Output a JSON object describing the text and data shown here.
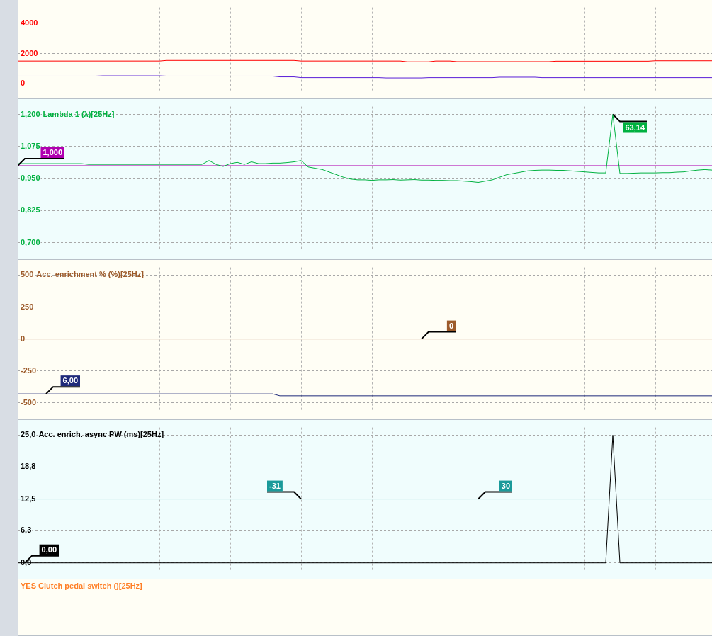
{
  "chart_data": [
    {
      "type": "line",
      "categories": [
        null,
        null,
        null,
        null,
        null,
        null,
        null,
        null,
        null,
        null,
        null,
        null,
        null,
        null,
        null,
        null,
        null,
        null,
        null,
        null,
        null,
        null,
        null,
        null,
        null,
        null,
        null,
        null,
        null,
        null,
        null,
        null,
        null,
        null,
        null,
        null,
        null,
        null,
        null,
        null,
        null,
        null,
        null,
        null,
        null,
        null,
        null,
        null,
        null,
        null,
        null,
        null,
        null,
        null,
        null,
        null,
        null,
        null,
        null,
        null,
        null,
        null,
        null,
        null,
        null,
        null,
        null,
        null,
        null,
        null,
        null,
        null,
        null,
        null,
        null,
        null,
        null,
        null,
        null,
        null,
        null,
        null,
        null,
        null,
        null,
        null,
        null,
        null,
        null,
        null,
        null,
        null,
        null,
        null,
        null,
        null,
        null,
        null,
        null
      ],
      "ylim": [
        -480,
        5040
      ],
      "yticks": [
        0,
        2000,
        4000
      ],
      "grid": true,
      "tick_labels": "y",
      "marker": "none",
      "series": [
        {
          "color": "#ff0000",
          "values": [
            1500,
            1500,
            1500,
            1500,
            1500,
            1500,
            1500,
            1500,
            1500,
            1500,
            1500,
            1500,
            1500,
            1500,
            1500,
            1500,
            1500,
            1500,
            1500,
            1500,
            1500,
            1540,
            1540,
            1540,
            1540,
            1540,
            1540,
            1540,
            1540,
            1540,
            1540,
            1540,
            1540,
            1540,
            1540,
            1540,
            1540,
            1540,
            1540,
            1540,
            1500,
            1500,
            1500,
            1500,
            1500,
            1500,
            1500,
            1500,
            1500,
            1500,
            1500,
            1500,
            1500,
            1500,
            1500,
            1450,
            1450,
            1450,
            1450,
            1500,
            1500,
            1500,
            1460,
            1460,
            1460,
            1460,
            1460,
            1460,
            1460,
            1460,
            1460,
            1460,
            1460,
            1460,
            1460,
            1460,
            1490,
            1490,
            1490,
            1490,
            1490,
            1490,
            1490,
            1490,
            1490,
            1490,
            1490,
            1490,
            1490,
            1490,
            1520,
            1520,
            1520,
            1520,
            1520,
            1520,
            1520,
            1520,
            1520
          ]
        },
        {
          "color": "#5a1fd8",
          "values": [
            500,
            500,
            500,
            500,
            500,
            500,
            500,
            500,
            500,
            500,
            500,
            500,
            520,
            520,
            520,
            520,
            520,
            520,
            520,
            520,
            520,
            500,
            500,
            500,
            500,
            500,
            500,
            500,
            500,
            500,
            500,
            500,
            500,
            500,
            500,
            500,
            500,
            450,
            450,
            450,
            400,
            400,
            400,
            400,
            400,
            400,
            400,
            400,
            400,
            400,
            400,
            400,
            380,
            380,
            380,
            380,
            380,
            380,
            400,
            400,
            400,
            400,
            400,
            400,
            400,
            400,
            400,
            400,
            430,
            430,
            430,
            430,
            430,
            430,
            400,
            400,
            400,
            400,
            400,
            400,
            400,
            400,
            400,
            400,
            400,
            400,
            400,
            400,
            400,
            400,
            400,
            400,
            400,
            400,
            400,
            400,
            400,
            400,
            400
          ]
        }
      ]
    },
    {
      "type": "line",
      "title": "Lambda 1 (λ)[25Hz]",
      "categories": [
        null,
        null,
        null,
        null,
        null,
        null,
        null,
        null,
        null,
        null,
        null,
        null,
        null,
        null,
        null,
        null,
        null,
        null,
        null,
        null,
        null,
        null,
        null,
        null,
        null,
        null,
        null,
        null,
        null,
        null,
        null,
        null,
        null,
        null,
        null,
        null,
        null,
        null,
        null,
        null,
        null,
        null,
        null,
        null,
        null,
        null,
        null,
        null,
        null,
        null,
        null,
        null,
        null,
        null,
        null,
        null,
        null,
        null,
        null,
        null,
        null,
        null,
        null,
        null,
        null,
        null,
        null,
        null,
        null,
        null,
        null,
        null,
        null,
        null,
        null,
        null,
        null,
        null,
        null,
        null,
        null,
        null,
        null,
        null,
        null,
        null,
        null,
        null,
        null,
        null,
        null,
        null,
        null,
        null,
        null,
        null,
        null,
        null,
        null
      ],
      "ylim": [
        0.665,
        1.23
      ],
      "yticks": [
        {
          "value": 0.7,
          "label": "0,700"
        },
        {
          "value": 0.825,
          "label": "0,825"
        },
        {
          "value": 0.95,
          "label": "0,950"
        },
        {
          "value": 1.075,
          "label": "1,075"
        },
        {
          "value": 1.2,
          "label": "1,200"
        }
      ],
      "grid": true,
      "tick_labels": "y",
      "marker": "none",
      "series": [
        {
          "color": "#00b140",
          "values": [
            1.008,
            1.008,
            1.008,
            1.008,
            1.008,
            1.008,
            1.008,
            1.008,
            1.008,
            1.008,
            1.005,
            1.005,
            1.005,
            1.005,
            1.005,
            1.005,
            1.005,
            1.005,
            1.005,
            1.005,
            1.005,
            1.005,
            1.005,
            1.005,
            1.005,
            1.005,
            1.005,
            1.02,
            1.005,
            0.997,
            1.008,
            1.013,
            1.005,
            1.015,
            1.008,
            1.008,
            1.01,
            1.01,
            1.012,
            1.015,
            1.02,
            0.995,
            0.99,
            0.985,
            0.975,
            0.965,
            0.955,
            0.948,
            0.945,
            0.945,
            0.943,
            0.945,
            0.945,
            0.946,
            0.944,
            0.945,
            0.946,
            0.944,
            0.944,
            0.943,
            0.943,
            0.942,
            0.942,
            0.94,
            0.938,
            0.935,
            0.94,
            0.945,
            0.955,
            0.965,
            0.97,
            0.975,
            0.98,
            0.982,
            0.983,
            0.983,
            0.982,
            0.982,
            0.98,
            0.978,
            0.976,
            0.974,
            0.972,
            0.972,
            1.2,
            0.97,
            0.97,
            0.971,
            0.972,
            0.972,
            0.972,
            0.973,
            0.973,
            0.975,
            0.976,
            0.98,
            0.983,
            0.985,
            0.983
          ]
        },
        {
          "color": "#b000b0",
          "values": [
            1.0,
            1.0,
            1.0,
            1.0,
            1.0,
            1.0,
            1.0,
            1.0,
            1.0,
            1.0,
            1.0,
            1.0,
            1.0,
            1.0,
            1.0,
            1.0,
            1.0,
            1.0,
            1.0,
            1.0,
            1.0,
            1.0,
            1.0,
            1.0,
            1.0,
            1.0,
            1.0,
            1.0,
            1.0,
            1.0,
            1.0,
            1.0,
            1.0,
            1.0,
            1.0,
            1.0,
            1.0,
            1.0,
            1.0,
            1.0,
            1.0,
            1.0,
            1.0,
            1.0,
            1.0,
            1.0,
            1.0,
            1.0,
            1.0,
            1.0,
            1.0,
            1.0,
            1.0,
            1.0,
            1.0,
            1.0,
            1.0,
            1.0,
            1.0,
            1.0,
            1.0,
            1.0,
            1.0,
            1.0,
            1.0,
            1.0,
            1.0,
            1.0,
            1.0,
            1.0,
            1.0,
            1.0,
            1.0,
            1.0,
            1.0,
            1.0,
            1.0,
            1.0,
            1.0,
            1.0,
            1.0,
            1.0,
            1.0,
            1.0,
            1.0,
            1.0,
            1.0,
            1.0,
            1.0,
            1.0,
            1.0,
            1.0,
            1.0,
            1.0,
            1.0,
            1.0,
            1.0,
            1.0,
            1.0
          ]
        }
      ],
      "annotations": [
        "1,000",
        "63,14"
      ]
    },
    {
      "type": "line",
      "title": "Acc. enrichment % (%)[25Hz]",
      "categories": [
        null,
        null,
        null,
        null,
        null,
        null,
        null,
        null,
        null,
        null,
        null,
        null,
        null,
        null,
        null,
        null,
        null,
        null,
        null,
        null,
        null,
        null,
        null,
        null,
        null,
        null,
        null,
        null,
        null,
        null,
        null,
        null,
        null,
        null,
        null,
        null,
        null,
        null,
        null,
        null,
        null,
        null,
        null,
        null,
        null,
        null,
        null,
        null,
        null,
        null,
        null,
        null,
        null,
        null,
        null,
        null,
        null,
        null,
        null,
        null,
        null,
        null,
        null,
        null,
        null,
        null,
        null,
        null,
        null,
        null,
        null,
        null,
        null,
        null,
        null,
        null,
        null,
        null,
        null,
        null,
        null,
        null,
        null,
        null,
        null,
        null,
        null,
        null,
        null,
        null,
        null,
        null,
        null,
        null,
        null,
        null,
        null,
        null,
        null
      ],
      "ylim": [
        -570,
        560
      ],
      "yticks": [
        -500,
        -250,
        0,
        250,
        500
      ],
      "grid": true,
      "tick_labels": "y",
      "marker": "none",
      "series": [
        {
          "color": "#9c5a2a",
          "values": [
            0,
            0,
            0,
            0,
            0,
            0,
            0,
            0,
            0,
            0,
            0,
            0,
            0,
            0,
            0,
            0,
            0,
            0,
            0,
            0,
            0,
            0,
            0,
            0,
            0,
            0,
            0,
            0,
            0,
            0,
            0,
            0,
            0,
            0,
            0,
            0,
            0,
            0,
            0,
            0,
            0,
            0,
            0,
            0,
            0,
            0,
            0,
            0,
            0,
            0,
            0,
            0,
            0,
            0,
            0,
            0,
            0,
            0,
            0,
            0,
            0,
            0,
            0,
            0,
            0,
            0,
            0,
            0,
            0,
            0,
            0,
            0,
            0,
            0,
            0,
            0,
            0,
            0,
            0,
            0,
            0,
            0,
            0,
            0,
            0,
            0,
            0,
            0,
            0,
            0,
            0,
            0,
            0,
            0,
            0,
            0,
            0,
            0,
            0
          ]
        },
        {
          "color": "#1f2a7a",
          "values": [
            -430,
            -430,
            -430,
            -430,
            -430,
            -430,
            -430,
            -430,
            -430,
            -430,
            -430,
            -430,
            -430,
            -430,
            -430,
            -430,
            -430,
            -430,
            -430,
            -430,
            -430,
            -430,
            -430,
            -430,
            -430,
            -430,
            -430,
            -430,
            -430,
            -430,
            -430,
            -430,
            -430,
            -430,
            -430,
            -430,
            -430,
            -445,
            -445,
            -445,
            -445,
            -445,
            -445,
            -445,
            -445,
            -445,
            -445,
            -445,
            -445,
            -445,
            -445,
            -445,
            -445,
            -445,
            -445,
            -445,
            -445,
            -445,
            -445,
            -445,
            -445,
            -445,
            -445,
            -445,
            -445,
            -445,
            -445,
            -445,
            -445,
            -445,
            -445,
            -445,
            -445,
            -445,
            -445,
            -445,
            -445,
            -445,
            -445,
            -445,
            -445,
            -445,
            -445,
            -445,
            -445,
            -445,
            -445,
            -445,
            -445,
            -445,
            -445,
            -445,
            -445,
            -445,
            -445,
            -445,
            -445,
            -445,
            -445
          ]
        }
      ],
      "annotations": [
        "0",
        "6,00"
      ]
    },
    {
      "type": "line",
      "title": "Acc. enrich. async PW (ms)[25Hz]",
      "categories": [
        null,
        null,
        null,
        null,
        null,
        null,
        null,
        null,
        null,
        null,
        null,
        null,
        null,
        null,
        null,
        null,
        null,
        null,
        null,
        null,
        null,
        null,
        null,
        null,
        null,
        null,
        null,
        null,
        null,
        null,
        null,
        null,
        null,
        null,
        null,
        null,
        null,
        null,
        null,
        null,
        null,
        null,
        null,
        null,
        null,
        null,
        null,
        null,
        null,
        null,
        null,
        null,
        null,
        null,
        null,
        null,
        null,
        null,
        null,
        null,
        null,
        null,
        null,
        null,
        null,
        null,
        null,
        null,
        null,
        null,
        null,
        null,
        null,
        null,
        null,
        null,
        null,
        null,
        null,
        null,
        null,
        null,
        null,
        null,
        null,
        null,
        null,
        null,
        null,
        null,
        null,
        null,
        null,
        null,
        null,
        null,
        null,
        null,
        null
      ],
      "ylim": [
        -1.76,
        26.5
      ],
      "yticks": [
        {
          "value": 0,
          "label": "0,0"
        },
        {
          "value": 6.3,
          "label": "6,3"
        },
        {
          "value": 12.5,
          "label": "12,5"
        },
        {
          "value": 18.8,
          "label": "18,8"
        },
        {
          "value": 25,
          "label": "25,0"
        }
      ],
      "grid": true,
      "tick_labels": "y",
      "marker": "none",
      "series": [
        {
          "color": "#000000",
          "values": [
            0,
            0,
            0,
            0,
            0,
            0,
            0,
            0,
            0,
            0,
            0,
            0,
            0,
            0,
            0,
            0,
            0,
            0,
            0,
            0,
            0,
            0,
            0,
            0,
            0,
            0,
            0,
            0,
            0,
            0,
            0,
            0,
            0,
            0,
            0,
            0,
            0,
            0,
            0,
            0,
            0,
            0,
            0,
            0,
            0,
            0,
            0,
            0,
            0,
            0,
            0,
            0,
            0,
            0,
            0,
            0,
            0,
            0,
            0,
            0,
            0,
            0,
            0,
            0,
            0,
            0,
            0,
            0,
            0,
            0,
            0,
            0,
            0,
            0,
            0,
            0,
            0,
            0,
            0,
            0,
            0,
            0,
            0,
            0,
            25,
            0,
            0,
            0,
            0,
            0,
            0,
            0,
            0,
            0,
            0,
            0,
            0,
            0,
            0
          ]
        },
        {
          "color": "#1a9a9a",
          "values": [
            12.5,
            12.5,
            12.5,
            12.5,
            12.5,
            12.5,
            12.5,
            12.5,
            12.5,
            12.5,
            12.5,
            12.5,
            12.5,
            12.5,
            12.5,
            12.5,
            12.5,
            12.5,
            12.5,
            12.5,
            12.5,
            12.5,
            12.5,
            12.5,
            12.5,
            12.5,
            12.5,
            12.5,
            12.5,
            12.5,
            12.5,
            12.5,
            12.5,
            12.5,
            12.5,
            12.5,
            12.5,
            12.5,
            12.5,
            12.5,
            12.5,
            12.5,
            12.5,
            12.5,
            12.5,
            12.5,
            12.5,
            12.5,
            12.5,
            12.5,
            12.5,
            12.5,
            12.5,
            12.5,
            12.5,
            12.5,
            12.5,
            12.5,
            12.5,
            12.5,
            12.5,
            12.5,
            12.5,
            12.5,
            12.5,
            12.5,
            12.5,
            12.5,
            12.5,
            12.5,
            12.5,
            12.5,
            12.5,
            12.5,
            12.5,
            12.5,
            12.5,
            12.5,
            12.5,
            12.5,
            12.5,
            12.5,
            12.5,
            12.5,
            12.5,
            12.5,
            12.5,
            12.5,
            12.5,
            12.5,
            12.5,
            12.5,
            12.5,
            12.5,
            12.5,
            12.5,
            12.5,
            12.5,
            12.5
          ]
        }
      ],
      "annotations": [
        "-31",
        "30",
        "0,00"
      ]
    },
    {
      "type": "other",
      "title": "YES Clutch pedal switch ()[25Hz]"
    }
  ]
}
